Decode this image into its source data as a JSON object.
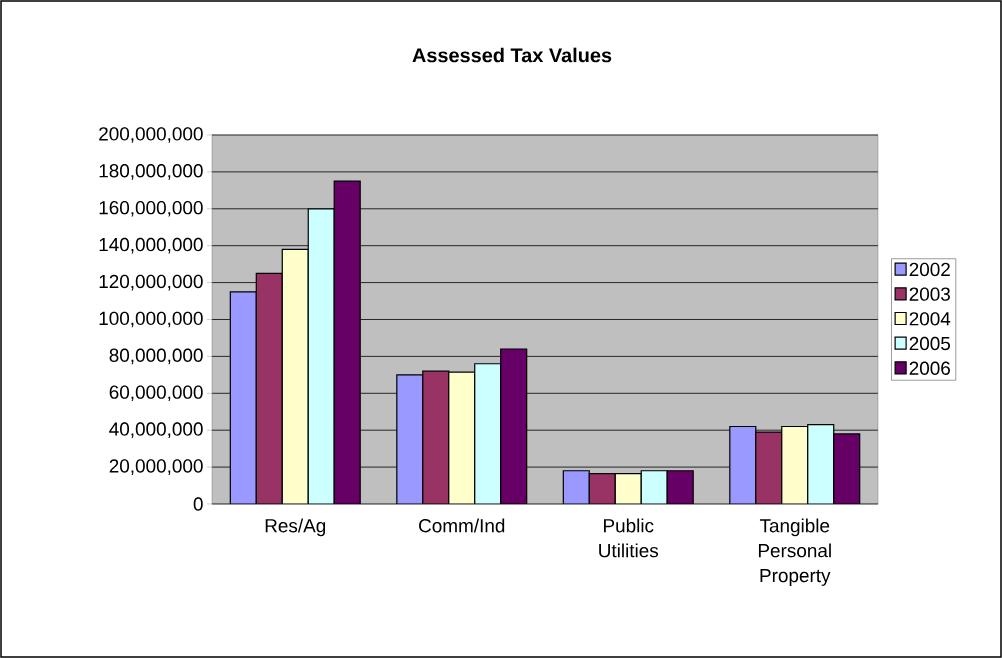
{
  "chart_data": {
    "type": "bar",
    "title": "Assessed Tax Values",
    "categories": [
      "Res/Ag",
      "Comm/Ind",
      "Public Utilities",
      "Tangible Personal Property"
    ],
    "series": [
      {
        "name": "2002",
        "color": "#9999ff",
        "values": [
          115000000,
          70000000,
          18000000,
          42000000
        ]
      },
      {
        "name": "2003",
        "color": "#993366",
        "values": [
          125000000,
          72000000,
          16500000,
          39000000
        ]
      },
      {
        "name": "2004",
        "color": "#ffffcc",
        "values": [
          138000000,
          71500000,
          16500000,
          42000000
        ]
      },
      {
        "name": "2005",
        "color": "#ccffff",
        "values": [
          160000000,
          76000000,
          18000000,
          43000000
        ]
      },
      {
        "name": "2006",
        "color": "#660066",
        "values": [
          175000000,
          84000000,
          18000000,
          38000000
        ]
      }
    ],
    "ylim": [
      0,
      200000000
    ],
    "yticks": [
      {
        "value": 0,
        "label": "0"
      },
      {
        "value": 20000000,
        "label": "20,000,000"
      },
      {
        "value": 40000000,
        "label": "40,000,000"
      },
      {
        "value": 60000000,
        "label": "60,000,000"
      },
      {
        "value": 80000000,
        "label": "80,000,000"
      },
      {
        "value": 100000000,
        "label": "100,000,000"
      },
      {
        "value": 120000000,
        "label": "120,000,000"
      },
      {
        "value": 140000000,
        "label": "140,000,000"
      },
      {
        "value": 160000000,
        "label": "160,000,000"
      },
      {
        "value": 180000000,
        "label": "180,000,000"
      },
      {
        "value": 200000000,
        "label": "200,000,000"
      }
    ],
    "grid": "y",
    "legend": "right"
  }
}
